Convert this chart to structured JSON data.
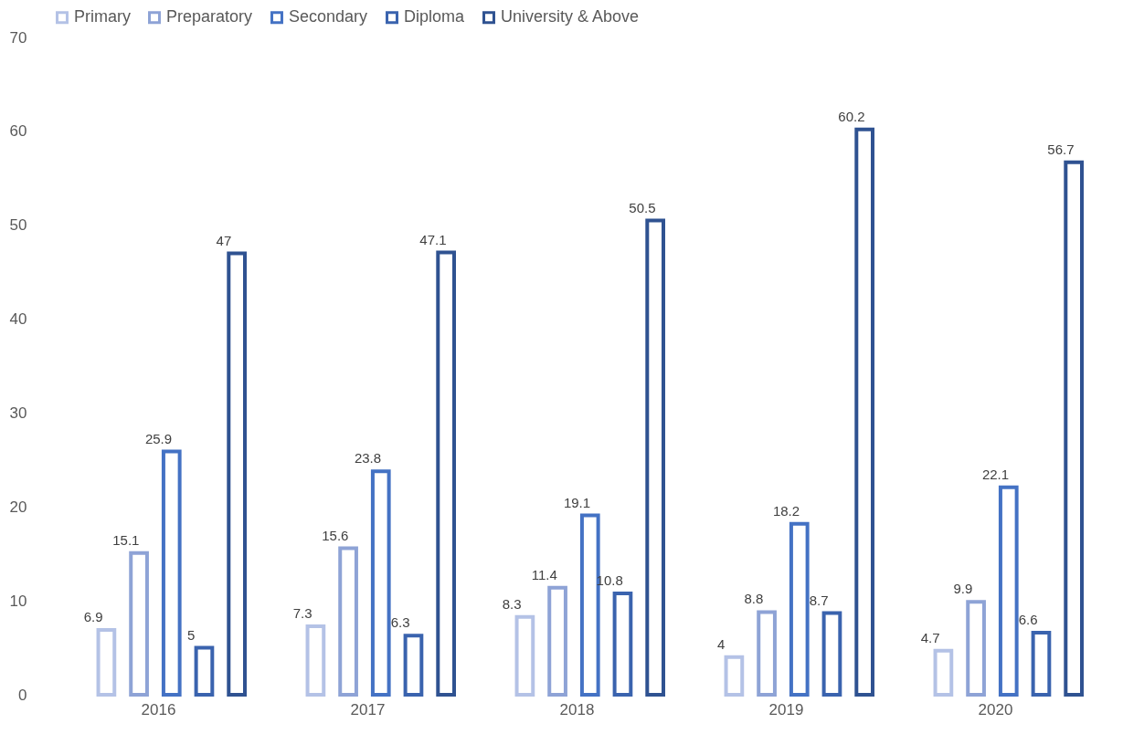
{
  "chart_data": {
    "type": "bar",
    "categories": [
      "2016",
      "2017",
      "2018",
      "2019",
      "2020"
    ],
    "series": [
      {
        "name": "Primary",
        "color": "#b4c2e6",
        "values": [
          6.9,
          7.3,
          8.3,
          4,
          4.7
        ]
      },
      {
        "name": "Preparatory",
        "color": "#8ea3d6",
        "values": [
          15.1,
          15.6,
          11.4,
          8.8,
          9.9
        ]
      },
      {
        "name": "Secondary",
        "color": "#4472c4",
        "values": [
          25.9,
          23.8,
          19.1,
          18.2,
          22.1
        ]
      },
      {
        "name": "Diploma",
        "color": "#3a63ae",
        "values": [
          5,
          6.3,
          10.8,
          8.7,
          6.6
        ]
      },
      {
        "name": "University & Above",
        "color": "#2f5291",
        "values": [
          47,
          47.1,
          50.5,
          60.2,
          56.7
        ]
      }
    ],
    "ylim": [
      0,
      70
    ],
    "yticks": [
      0,
      10,
      20,
      30,
      40,
      50,
      60,
      70
    ],
    "grid": false,
    "legend": "top",
    "data_labels": true
  }
}
